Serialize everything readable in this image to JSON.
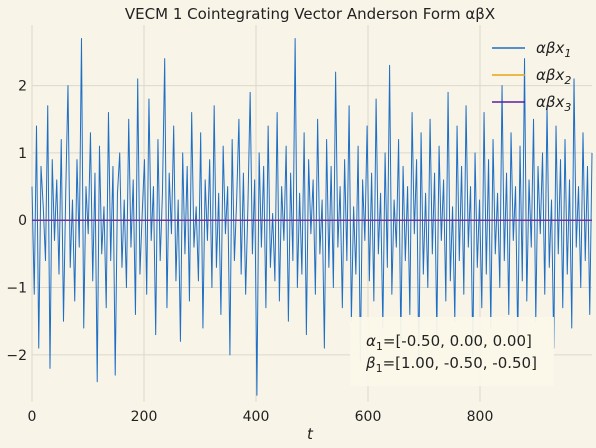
{
  "chart_data": {
    "type": "line",
    "title": "VECM 1 Cointegrating Vector Anderson Form αβX",
    "xlabel": "t",
    "ylabel": "",
    "xlim": [
      0,
      1000
    ],
    "ylim": [
      -2.7,
      2.9
    ],
    "xticks": [
      0,
      200,
      400,
      600,
      800
    ],
    "yticks": [
      -2,
      -1,
      0,
      1,
      2
    ],
    "xtick_labels": [
      "0",
      "200",
      "400",
      "600",
      "800"
    ],
    "ytick_labels": [
      "−2",
      "−1",
      "0",
      "1",
      "2"
    ],
    "grid": true,
    "legend_position": "top-right",
    "series": [
      {
        "name": "αβx",
        "sub": "1",
        "color": "#1f6fc4",
        "values": [
          0.5,
          -1.1,
          1.4,
          -1.9,
          0.8,
          0.2,
          -0.6,
          1.7,
          -2.2,
          0.9,
          -0.3,
          0.6,
          -0.8,
          1.2,
          -1.5,
          0.4,
          2.0,
          -0.7,
          0.3,
          -1.2,
          0.9,
          -0.4,
          2.7,
          -1.6,
          0.5,
          -0.2,
          1.3,
          -0.9,
          0.7,
          -2.4,
          1.1,
          -0.5,
          0.2,
          -1.3,
          1.6,
          -0.6,
          0.8,
          -2.3,
          0.4,
          1.0,
          -0.7,
          0.3,
          -1.0,
          1.5,
          -0.4,
          0.6,
          -1.4,
          2.1,
          -0.8,
          0.1,
          0.9,
          -1.1,
          1.8,
          -0.3,
          0.5,
          -1.7,
          1.2,
          -0.6,
          0.4,
          2.4,
          -1.3,
          0.7,
          -0.2,
          1.4,
          -0.9,
          0.3,
          -1.8,
          1.0,
          -0.5,
          0.8,
          -1.2,
          1.6,
          -0.4,
          0.2,
          -0.9,
          1.3,
          -1.6,
          0.6,
          -0.3,
          0.9,
          -1.0,
          1.7,
          -0.7,
          0.4,
          -1.4,
          1.1,
          -0.2,
          0.5,
          -2.0,
          1.2,
          -0.6,
          0.3,
          1.5,
          -0.8,
          0.7,
          -1.1,
          0.2,
          1.9,
          -0.5,
          0.6,
          -2.6,
          1.0,
          -0.4,
          0.8,
          -1.3,
          1.4,
          -0.7,
          0.1,
          -0.9,
          1.6,
          -1.2,
          0.5,
          -0.3,
          1.1,
          -1.5,
          0.7,
          -0.6,
          2.7,
          -1.0,
          0.4,
          -0.8,
          1.3,
          -1.7,
          0.9,
          -0.2,
          0.6,
          -1.1,
          1.5,
          -0.5,
          0.3,
          -1.9,
          1.2,
          -0.7,
          0.8,
          -1.0,
          2.2,
          -0.4,
          0.5,
          -1.3,
          0.9,
          -0.6,
          1.7,
          -1.5,
          0.2,
          -0.8,
          1.1,
          -2.1,
          0.6,
          -0.3,
          1.4,
          -0.9,
          0.7,
          -1.2,
          1.8,
          -0.5,
          0.4,
          -1.6,
          1.0,
          -0.7,
          2.3,
          -1.1,
          0.3,
          -0.4,
          1.2,
          -1.8,
          0.8,
          -0.6,
          0.5,
          -1.4,
          1.6,
          -0.2,
          0.9,
          -2.2,
          1.3,
          -0.8,
          0.4,
          -1.0,
          1.5,
          -0.5,
          0.7,
          -1.7,
          1.1,
          -0.3,
          0.6,
          -1.2,
          1.9,
          -0.9,
          0.2,
          -1.5,
          1.4,
          -0.6,
          0.8,
          -1.1,
          1.7,
          -0.4,
          0.5,
          -2.0,
          1.0,
          -0.7,
          0.3,
          -1.3,
          1.6,
          -0.8,
          0.9,
          -1.6,
          1.2,
          -0.5,
          0.4,
          -1.0,
          2.0,
          -0.6,
          0.7,
          -1.4,
          1.3,
          -0.3,
          0.5,
          -1.8,
          1.1,
          -0.9,
          2.4,
          -1.2,
          0.6,
          -0.4,
          1.5,
          -1.5,
          0.8,
          -0.2,
          1.0,
          -1.1,
          1.7,
          -0.7,
          0.3,
          -1.9,
          1.4,
          -0.5,
          0.9,
          -1.3,
          1.2,
          -0.8,
          0.6,
          -1.6,
          2.1,
          -0.4,
          0.5,
          -1.0,
          1.3,
          -0.6,
          0.8,
          -1.4,
          1.0
        ]
      },
      {
        "name": "αβx",
        "sub": "2",
        "color": "#e8a317",
        "values": [
          0.0,
          0.0
        ]
      },
      {
        "name": "αβx",
        "sub": "3",
        "color": "#5b1fa8",
        "values": [
          0.0,
          0.0
        ]
      }
    ],
    "annotation": {
      "line1_sym": "α",
      "line1_sub": "1",
      "line1_val": "=[-0.50, 0.00, 0.00]",
      "line2_sym": "β",
      "line2_sub": "1",
      "line2_val": "=[1.00, -0.50, -0.50]"
    }
  }
}
